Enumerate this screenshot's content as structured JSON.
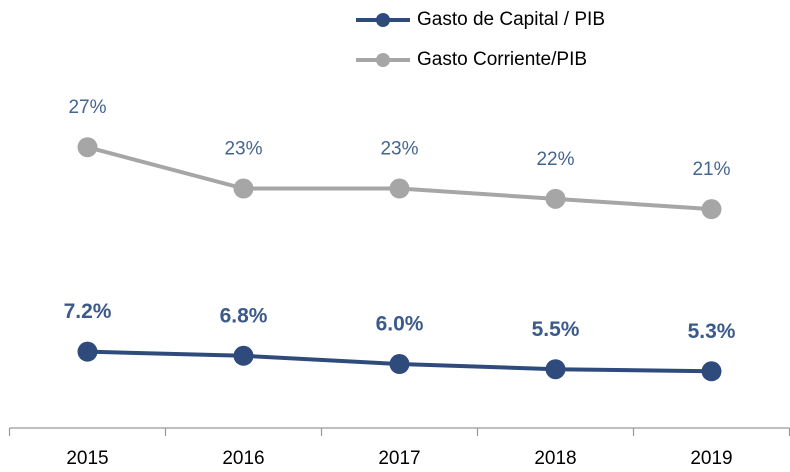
{
  "chart_data": {
    "type": "line",
    "categories": [
      "2015",
      "2016",
      "2017",
      "2018",
      "2019"
    ],
    "series": [
      {
        "name": "Gasto de Capital / PIB",
        "color": "#2f4b7c",
        "label_color": "#3b5a8a",
        "label_bold": true,
        "values": [
          7.2,
          6.8,
          6.0,
          5.5,
          5.3
        ],
        "value_labels": [
          "7.2%",
          "6.8%",
          "6.0%",
          "5.5%",
          "5.3%"
        ]
      },
      {
        "name": "Gasto Corriente/PIB",
        "color": "#a6a6a6",
        "label_color": "#44658f",
        "label_bold": false,
        "values": [
          27,
          23,
          23,
          22,
          21
        ],
        "value_labels": [
          "27%",
          "23%",
          "23%",
          "22%",
          "21%"
        ]
      }
    ],
    "ylim": [
      0,
      40
    ],
    "legend": "top"
  }
}
